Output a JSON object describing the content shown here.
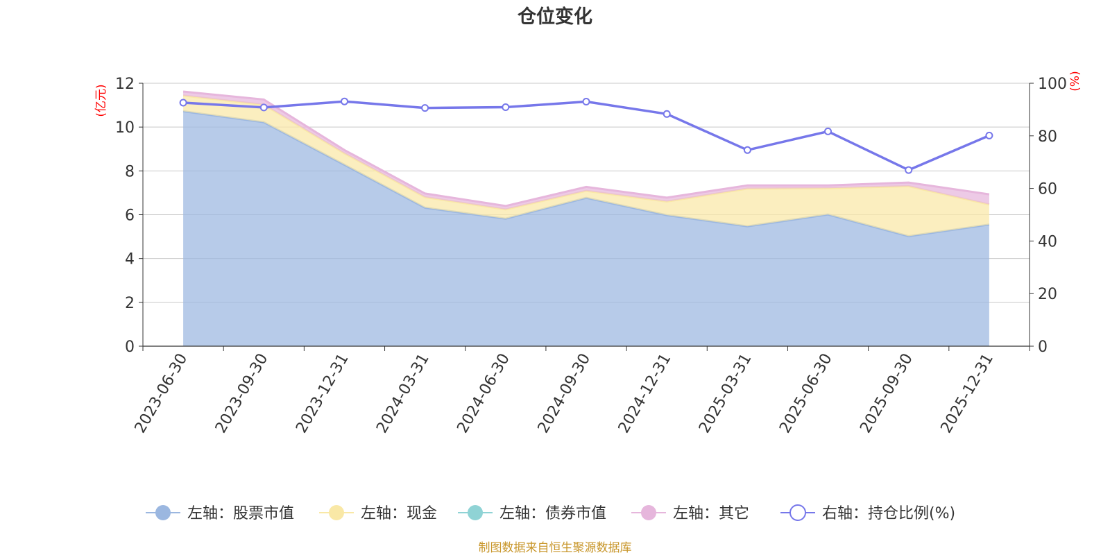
{
  "chart_data": {
    "type": "area",
    "title": "仓位变化",
    "left_axis_unit": "(亿元)",
    "right_axis_unit": "(%)",
    "categories": [
      "2023-06-30",
      "2023-09-30",
      "2023-12-31",
      "2024-03-31",
      "2024-06-30",
      "2024-09-30",
      "2024-12-31",
      "2025-03-31",
      "2025-06-30",
      "2025-09-30",
      "2025-12-31"
    ],
    "ylim_left": [
      0,
      12
    ],
    "yticks_left": [
      0,
      2,
      4,
      6,
      8,
      10,
      12
    ],
    "ylim_right": [
      0,
      100
    ],
    "yticks_right": [
      0,
      20,
      40,
      60,
      80,
      100
    ],
    "grid": true,
    "stacked": true,
    "series": [
      {
        "name": "左轴：股票市值",
        "axis": "left",
        "type": "area",
        "color": "#9bb7e0",
        "values": [
          10.72,
          10.22,
          8.28,
          6.32,
          5.82,
          6.77,
          5.98,
          5.47,
          6.01,
          5.02,
          5.55
        ]
      },
      {
        "name": "左轴：现金",
        "axis": "left",
        "type": "area",
        "color": "#f9e8a6",
        "values": [
          0.72,
          0.8,
          0.52,
          0.48,
          0.42,
          0.32,
          0.62,
          1.72,
          1.2,
          2.28,
          0.92
        ]
      },
      {
        "name": "左轴：债券市值",
        "axis": "left",
        "type": "area",
        "color": "#8fd3d5",
        "values": [
          0,
          0,
          0,
          0,
          0,
          0,
          0,
          0,
          0,
          0,
          0
        ]
      },
      {
        "name": "左轴：其它",
        "axis": "left",
        "type": "area",
        "color": "#e6b6dc",
        "values": [
          0.18,
          0.24,
          0.15,
          0.17,
          0.16,
          0.18,
          0.18,
          0.15,
          0.13,
          0.17,
          0.46
        ]
      },
      {
        "name": "右轴：持仓比例(%)",
        "axis": "right",
        "type": "line",
        "color": "#7677ea",
        "values": [
          92.6,
          90.8,
          93.1,
          90.6,
          90.9,
          93.0,
          88.3,
          74.6,
          81.7,
          67.0,
          80.1
        ]
      }
    ],
    "legend_position": "bottom",
    "source": "制图数据来自恒生聚源数据库"
  },
  "colors": {
    "axis_unit": "#ff0000",
    "source_text": "#c8962a",
    "title": "#333333",
    "axis_text": "#333333"
  }
}
